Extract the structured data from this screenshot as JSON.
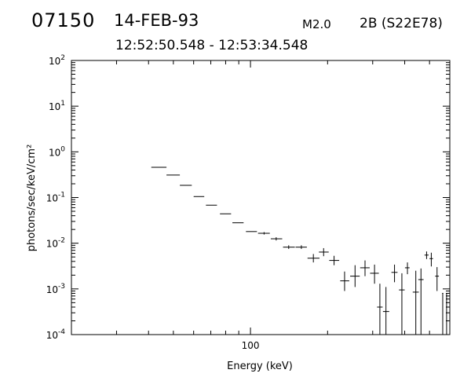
{
  "header": {
    "event_id": "07150",
    "date": "14-FEB-93",
    "goes_class": "M2.0",
    "flare_info": "2B (S22E78)",
    "time_range": "12:52:50.548 - 12:53:34.548"
  },
  "chart_data": {
    "type": "scatter",
    "title": "",
    "xlabel": "Energy (keV)",
    "ylabel": "photons/sec/keV/cm²",
    "xscale": "log",
    "yscale": "log",
    "xlim": [
      20,
      600
    ],
    "ylim": [
      0.0001,
      100
    ],
    "grid": false,
    "x_ticks": [
      {
        "value": 100,
        "label": "100"
      }
    ],
    "y_ticks": [
      {
        "value": 100,
        "base": "10",
        "exp": "2"
      },
      {
        "value": 10,
        "base": "10",
        "exp": "1"
      },
      {
        "value": 1,
        "base": "10",
        "exp": "0"
      },
      {
        "value": 0.1,
        "base": "10",
        "exp": "-1"
      },
      {
        "value": 0.01,
        "base": "10",
        "exp": "-2"
      },
      {
        "value": 0.001,
        "base": "10",
        "exp": "-3"
      },
      {
        "value": 0.0001,
        "base": "10",
        "exp": "-4"
      }
    ],
    "points": [
      {
        "x": 44,
        "xlo": 41,
        "xhi": 47,
        "y": 0.46,
        "ylo": 0.46,
        "yhi": 0.46
      },
      {
        "x": 50,
        "xlo": 47,
        "xhi": 53,
        "y": 0.31,
        "ylo": 0.31,
        "yhi": 0.31
      },
      {
        "x": 56,
        "xlo": 53,
        "xhi": 59,
        "y": 0.185,
        "ylo": 0.185,
        "yhi": 0.185
      },
      {
        "x": 63,
        "xlo": 60,
        "xhi": 66,
        "y": 0.105,
        "ylo": 0.105,
        "yhi": 0.105
      },
      {
        "x": 71,
        "xlo": 67,
        "xhi": 74,
        "y": 0.068,
        "ylo": 0.068,
        "yhi": 0.068
      },
      {
        "x": 80,
        "xlo": 76,
        "xhi": 84,
        "y": 0.044,
        "ylo": 0.044,
        "yhi": 0.044
      },
      {
        "x": 90,
        "xlo": 85,
        "xhi": 94,
        "y": 0.028,
        "ylo": 0.028,
        "yhi": 0.028
      },
      {
        "x": 101,
        "xlo": 96,
        "xhi": 106,
        "y": 0.018,
        "ylo": 0.018,
        "yhi": 0.018
      },
      {
        "x": 113,
        "xlo": 107,
        "xhi": 119,
        "y": 0.0165,
        "ylo": 0.0155,
        "yhi": 0.0175
      },
      {
        "x": 126,
        "xlo": 120,
        "xhi": 133,
        "y": 0.0125,
        "ylo": 0.0115,
        "yhi": 0.0135
      },
      {
        "x": 141,
        "xlo": 134,
        "xhi": 149,
        "y": 0.0082,
        "ylo": 0.0075,
        "yhi": 0.009
      },
      {
        "x": 158,
        "xlo": 150,
        "xhi": 166,
        "y": 0.0082,
        "ylo": 0.0075,
        "yhi": 0.009
      },
      {
        "x": 176,
        "xlo": 167,
        "xhi": 186,
        "y": 0.0047,
        "ylo": 0.0038,
        "yhi": 0.0058
      },
      {
        "x": 193,
        "xlo": 185,
        "xhi": 202,
        "y": 0.0064,
        "ylo": 0.0052,
        "yhi": 0.0078
      },
      {
        "x": 212,
        "xlo": 203,
        "xhi": 222,
        "y": 0.0042,
        "ylo": 0.0033,
        "yhi": 0.0053
      },
      {
        "x": 233,
        "xlo": 224,
        "xhi": 243,
        "y": 0.0015,
        "ylo": 0.0009,
        "yhi": 0.0024
      },
      {
        "x": 256,
        "xlo": 245,
        "xhi": 267,
        "y": 0.0019,
        "ylo": 0.0011,
        "yhi": 0.0033
      },
      {
        "x": 280,
        "xlo": 268,
        "xhi": 292,
        "y": 0.0029,
        "ylo": 0.0019,
        "yhi": 0.0042
      },
      {
        "x": 305,
        "xlo": 293,
        "xhi": 317,
        "y": 0.0022,
        "ylo": 0.0013,
        "yhi": 0.0034
      },
      {
        "x": 320,
        "xlo": 312,
        "xhi": 328,
        "y": 0.0004,
        "ylo": 0.0001,
        "yhi": 0.0013
      },
      {
        "x": 338,
        "xlo": 329,
        "xhi": 348,
        "y": 0.00032,
        "ylo": 0.0001,
        "yhi": 0.0011
      },
      {
        "x": 365,
        "xlo": 355,
        "xhi": 375,
        "y": 0.0023,
        "ylo": 0.0014,
        "yhi": 0.0034
      },
      {
        "x": 390,
        "xlo": 380,
        "xhi": 400,
        "y": 0.00095,
        "ylo": 0.0001,
        "yhi": 0.0022
      },
      {
        "x": 410,
        "xlo": 401,
        "xhi": 418,
        "y": 0.0029,
        "ylo": 0.0021,
        "yhi": 0.0038
      },
      {
        "x": 442,
        "xlo": 430,
        "xhi": 454,
        "y": 0.00085,
        "ylo": 0.0001,
        "yhi": 0.0025
      },
      {
        "x": 463,
        "xlo": 452,
        "xhi": 474,
        "y": 0.0016,
        "ylo": 0.0001,
        "yhi": 0.0028
      },
      {
        "x": 487,
        "xlo": 478,
        "xhi": 496,
        "y": 0.0055,
        "ylo": 0.0045,
        "yhi": 0.0066
      },
      {
        "x": 508,
        "xlo": 500,
        "xhi": 516,
        "y": 0.0046,
        "ylo": 0.0031,
        "yhi": 0.0062
      },
      {
        "x": 535,
        "xlo": 526,
        "xhi": 544,
        "y": 0.0019,
        "ylo": 0.0009,
        "yhi": 0.003
      },
      {
        "x": 563,
        "xlo": 560,
        "xhi": 566,
        "y": 0.0008,
        "ylo": 0.0001,
        "yhi": 0.0008
      },
      {
        "x": 583,
        "xlo": 580,
        "xhi": 586,
        "y": 0.0008,
        "ylo": 0.0001,
        "yhi": 0.0008
      }
    ]
  }
}
